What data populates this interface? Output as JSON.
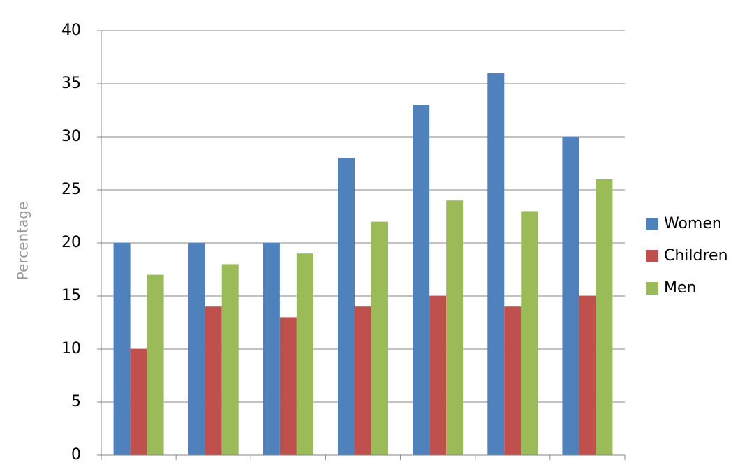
{
  "chart_data": {
    "type": "bar",
    "y_label": "Percentage",
    "categories": [
      null,
      null,
      null,
      null,
      null,
      null,
      null
    ],
    "series": [
      {
        "name": "Women",
        "color": "#4f81bd",
        "values": [
          20,
          20,
          20,
          28,
          33,
          36,
          30
        ]
      },
      {
        "name": "Children",
        "color": "#c0504d",
        "values": [
          10,
          14,
          13,
          14,
          15,
          14,
          15
        ]
      },
      {
        "name": "Men",
        "color": "#9bbb59",
        "values": [
          17,
          18,
          19,
          22,
          24,
          23,
          26
        ]
      }
    ],
    "ylim": [
      0,
      40
    ],
    "yticks": [
      0,
      5,
      10,
      15,
      20,
      25,
      30,
      35,
      40
    ],
    "grid": true,
    "legend": "right"
  }
}
